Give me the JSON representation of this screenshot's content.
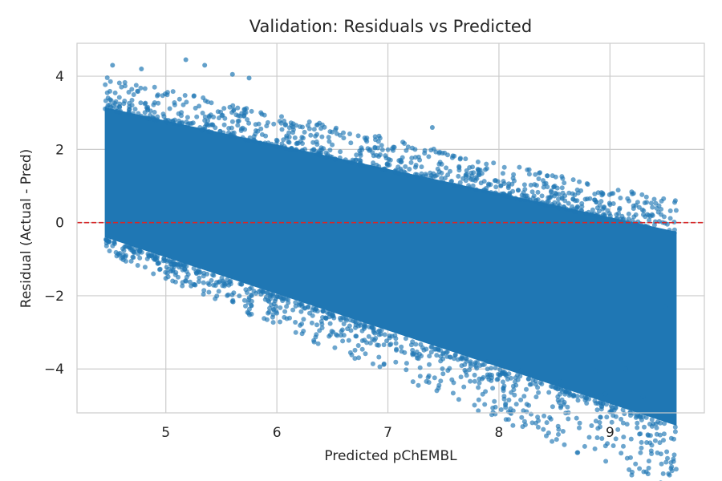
{
  "chart_data": {
    "type": "scatter",
    "title": "Validation: Residuals vs Predicted",
    "xlabel": "Predicted pChEMBL",
    "ylabel": "Residual (Actual - Pred)",
    "xlim": [
      4.2,
      9.85
    ],
    "ylim": [
      -5.2,
      4.9
    ],
    "xticks": [
      5,
      6,
      7,
      8,
      9
    ],
    "yticks": [
      -4,
      -2,
      0,
      2,
      4
    ],
    "xtick_labels": [
      "5",
      "6",
      "7",
      "8",
      "9"
    ],
    "ytick_labels": [
      "−4",
      "−2",
      "0",
      "2",
      "4"
    ],
    "grid": true,
    "reference_line": {
      "y": 0,
      "style": "dashed",
      "color": "#d62728"
    },
    "series": [
      {
        "name": "residuals",
        "color": "#1f77b4",
        "x_range": [
          4.45,
          9.6
        ],
        "band": {
          "lower_at_min_x": -0.45,
          "lower_slope_equals_negative_x": true,
          "upper_at_min_x": 3.5,
          "upper_at_max_x": 0.1
        },
        "outliers": [
          {
            "x": 4.52,
            "y": 4.3
          },
          {
            "x": 4.78,
            "y": 4.2
          },
          {
            "x": 5.18,
            "y": 4.45
          },
          {
            "x": 5.35,
            "y": 4.3
          },
          {
            "x": 5.6,
            "y": 4.05
          },
          {
            "x": 5.75,
            "y": 3.95
          },
          {
            "x": 7.4,
            "y": 2.6
          },
          {
            "x": 7.9,
            "y": -3.8
          },
          {
            "x": 8.0,
            "y": -3.8
          },
          {
            "x": 8.2,
            "y": -4.05
          },
          {
            "x": 8.55,
            "y": -4.35
          },
          {
            "x": 8.56,
            "y": -4.5
          },
          {
            "x": 8.88,
            "y": -4.75
          },
          {
            "x": 8.96,
            "y": -4.68
          },
          {
            "x": 8.87,
            "y": -4.05
          },
          {
            "x": 9.14,
            "y": -4.0
          },
          {
            "x": 9.3,
            "y": -4.75
          },
          {
            "x": 9.5,
            "y": -2.3
          }
        ]
      }
    ]
  }
}
